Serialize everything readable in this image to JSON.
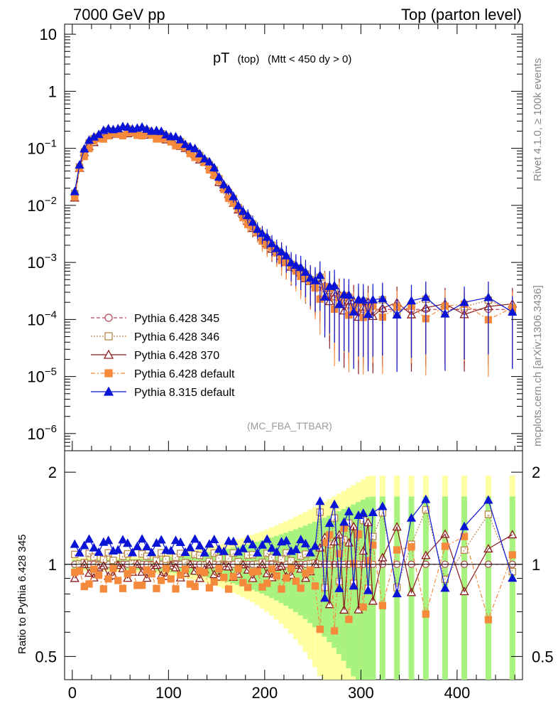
{
  "header": {
    "left": "7000 GeV pp",
    "right": "Top (parton level)"
  },
  "side_labels": {
    "events": "Rivet 4.1.0, ≥ 100k events",
    "source": "mcplots.cern.ch [arXiv:1306.3436]"
  },
  "chart_data": {
    "type": "line",
    "title": "pT",
    "title_sub1": "(top)",
    "title_sub2": "(Mtt < 450 dy > 0)",
    "watermark": "(MC_FBA_TTBAR)",
    "xlabel": "",
    "ylabel_main": "",
    "ylabel_ratio": "Ratio to Pythia 6.428 345",
    "xlim": [
      -8,
      468
    ],
    "ylim": [
      5e-07,
      15
    ],
    "ratio_ylim": [
      0.42,
      2.35
    ],
    "x_ticks": [
      0,
      100,
      200,
      300,
      400
    ],
    "x_tick_labels": [
      "0",
      "100",
      "200",
      "300",
      "400"
    ],
    "y_ticks": [
      1e-06,
      1e-05,
      0.0001,
      0.001,
      0.01,
      0.1,
      1,
      10
    ],
    "y_tick_labels": [
      {
        "base": "10",
        "exp": "−6"
      },
      {
        "base": "10",
        "exp": "−5"
      },
      {
        "base": "10",
        "exp": "−4"
      },
      {
        "base": "10",
        "exp": "−3"
      },
      {
        "base": "10",
        "exp": "−2"
      },
      {
        "base": "10",
        "exp": "−1"
      },
      {
        "base": "1",
        "exp": ""
      },
      {
        "base": "10",
        "exp": ""
      }
    ],
    "ratio_ticks": [
      0.5,
      1,
      2
    ],
    "ratio_tick_labels": [
      "0.5",
      "1",
      "2"
    ],
    "legend_position": "lower-left",
    "series": [
      {
        "name": "Pythia 6.428 345",
        "color": "#b5485b",
        "marker": "circle-open",
        "dash": "5,3",
        "offset": 1.0,
        "wiggle": 0.0
      },
      {
        "name": "Pythia 6.428 346",
        "color": "#b8864a",
        "marker": "square-open",
        "dash": "2,2",
        "offset": 1.04,
        "wiggle": 0.05
      },
      {
        "name": "Pythia 6.428 370",
        "color": "#8b1a1a",
        "marker": "triangle-open",
        "dash": "",
        "offset": 0.95,
        "wiggle": 0.05
      },
      {
        "name": "Pythia 6.428 default",
        "color": "#f58a3c",
        "marker": "square-filled",
        "dash": "6,3,2,3",
        "offset": 0.9,
        "wiggle": 0.07
      },
      {
        "name": "Pythia 8.315 default",
        "color": "#0a14d6",
        "marker": "triangle-filled",
        "dash": "",
        "offset": 1.15,
        "wiggle": 0.06
      }
    ],
    "reference": {
      "x": [
        2.5,
        7.5,
        12.5,
        17.5,
        22.5,
        27.5,
        32.5,
        37.5,
        42.5,
        47.5,
        52.5,
        57.5,
        62.5,
        67.5,
        72.5,
        77.5,
        82.5,
        87.5,
        92.5,
        97.5,
        102.5,
        107.5,
        112.5,
        117.5,
        122.5,
        127.5,
        132.5,
        137.5,
        142.5,
        147.5,
        152.5,
        157.5,
        162.5,
        167.5,
        172.5,
        177.5,
        182.5,
        187.5,
        192.5,
        197.5,
        202.5,
        207.5,
        212.5,
        217.5,
        222.5,
        227.5,
        232.5,
        237.5,
        242.5,
        247.5,
        252.5,
        257.5,
        262.5,
        267.5,
        272.5,
        277.5,
        282.5,
        287.5,
        292.5,
        297.5,
        302.5,
        307.5,
        312.5,
        322.5,
        337.5,
        352.5,
        367.5,
        387.5,
        407.5,
        432.5,
        457.5
      ],
      "y": [
        0.015,
        0.047,
        0.085,
        0.115,
        0.14,
        0.16,
        0.175,
        0.185,
        0.193,
        0.198,
        0.2,
        0.201,
        0.2,
        0.198,
        0.195,
        0.19,
        0.183,
        0.175,
        0.165,
        0.155,
        0.145,
        0.133,
        0.12,
        0.107,
        0.094,
        0.082,
        0.07,
        0.06,
        0.05,
        0.038,
        0.028,
        0.021,
        0.016,
        0.012,
        0.009,
        0.007,
        0.0055,
        0.0044,
        0.0035,
        0.0028,
        0.0023,
        0.0019,
        0.0016,
        0.0013,
        0.0011,
        0.0009,
        0.0008,
        0.00068,
        0.00058,
        0.00049,
        0.00042,
        0.00037,
        0.00032,
        0.00028,
        0.00025,
        0.00022,
        0.0002,
        0.00018,
        0.00016,
        0.000155,
        0.00015,
        0.00015,
        0.00015,
        0.00015,
        0.00015,
        0.00015,
        0.00015,
        0.00015,
        0.00015,
        0.00015,
        0.00015
      ]
    }
  }
}
